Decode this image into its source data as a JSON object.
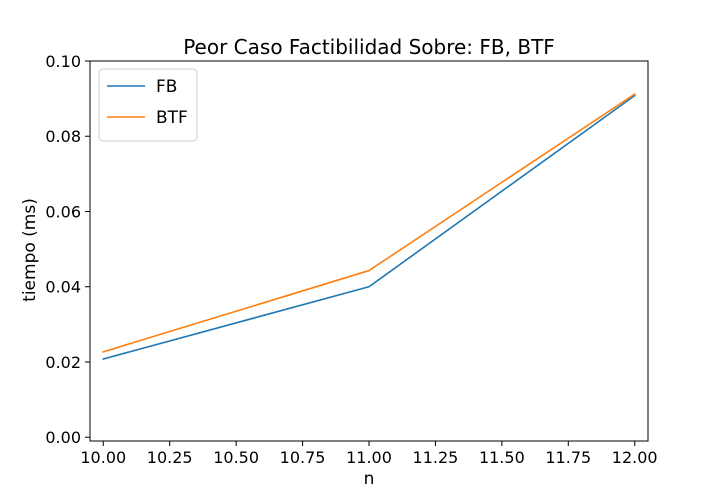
{
  "chart_data": {
    "type": "line",
    "title": "Peor Caso Factibilidad Sobre: FB, BTF",
    "xlabel": "n",
    "ylabel": "tiempo (ms)",
    "xlim": [
      9.95,
      12.05
    ],
    "ylim": [
      -0.001,
      0.1
    ],
    "x_ticks": [
      "10.00",
      "10.25",
      "10.50",
      "10.75",
      "11.00",
      "11.25",
      "11.50",
      "11.75",
      "12.00"
    ],
    "y_ticks": [
      "0.00",
      "0.02",
      "0.04",
      "0.06",
      "0.08",
      "0.10"
    ],
    "legend_position": "upper-left",
    "grid": false,
    "series": [
      {
        "name": "FB",
        "color": "#1f77b4",
        "x": [
          10,
          11,
          12
        ],
        "y": [
          0.0208,
          0.04,
          0.0908
        ]
      },
      {
        "name": "BTF",
        "color": "#ff7f0e",
        "x": [
          10,
          11,
          12
        ],
        "y": [
          0.0227,
          0.0443,
          0.0912
        ]
      }
    ]
  }
}
